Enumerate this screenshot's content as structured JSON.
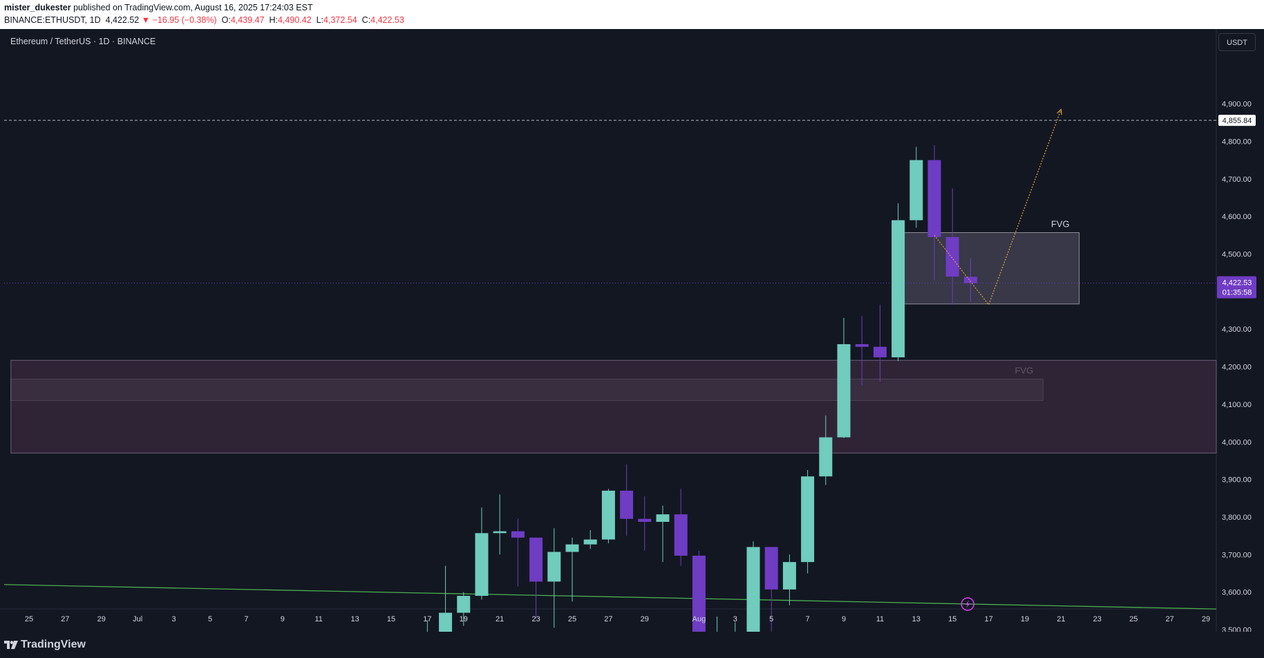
{
  "header": {
    "author": "mister_dukester",
    "published_text": "published on TradingView.com, August 16, 2025 17:24:03 EST",
    "symbol": "BINANCE:ETHUSDT, 1D",
    "price": "4,422.52",
    "change": "−16.95 (−0.38%)",
    "o_label": "O:",
    "o_value": "4,439.47",
    "h_label": "H:",
    "h_value": "4,490.42",
    "l_label": "L:",
    "l_value": "4,372.54",
    "c_label": "C:",
    "c_value": "4,422.53"
  },
  "chart": {
    "title": "Ethereum / TetherUS · 1D · BINANCE",
    "currency_button": "USDT",
    "brand": "TradingView"
  },
  "colors": {
    "background": "#131722",
    "bullish": "#70ccbd",
    "bearish": "#6f3cc4",
    "trendline": "#4caf50",
    "projection": "#e0a13a",
    "zone_fill": "#3a2a3e",
    "current_price_tag": "#6f3cc4"
  },
  "chart_data": {
    "type": "candlestick",
    "symbol": "ETHUSDT",
    "interval": "1D",
    "exchange": "BINANCE",
    "ylim": [
      3480,
      4990
    ],
    "y_ticks": [
      3500,
      3600,
      3700,
      3800,
      3900,
      4000,
      4100,
      4200,
      4300,
      4400,
      4500,
      4600,
      4700,
      4800,
      4900
    ],
    "y_tick_labels": [
      "3,500.00",
      "3,600.00",
      "3,700.00",
      "3,800.00",
      "3,900.00",
      "4,000.00",
      "4,100.00",
      "4,200.00",
      "4,300.00",
      "4,400.00",
      "4,500.00",
      "4,600.00",
      "4,700.00",
      "4,800.00",
      "4,900.00"
    ],
    "x_ticks": [
      {
        "date": "2025-06-25",
        "label": "25"
      },
      {
        "date": "2025-06-27",
        "label": "27"
      },
      {
        "date": "2025-06-29",
        "label": "29"
      },
      {
        "date": "2025-07-01",
        "label": "Jul"
      },
      {
        "date": "2025-07-03",
        "label": "3"
      },
      {
        "date": "2025-07-05",
        "label": "5"
      },
      {
        "date": "2025-07-07",
        "label": "7"
      },
      {
        "date": "2025-07-09",
        "label": "9"
      },
      {
        "date": "2025-07-11",
        "label": "11"
      },
      {
        "date": "2025-07-13",
        "label": "13"
      },
      {
        "date": "2025-07-15",
        "label": "15"
      },
      {
        "date": "2025-07-17",
        "label": "17"
      },
      {
        "date": "2025-07-19",
        "label": "19"
      },
      {
        "date": "2025-07-21",
        "label": "21"
      },
      {
        "date": "2025-07-23",
        "label": "23"
      },
      {
        "date": "2025-07-25",
        "label": "25"
      },
      {
        "date": "2025-07-27",
        "label": "27"
      },
      {
        "date": "2025-07-29",
        "label": "29"
      },
      {
        "date": "2025-08-01",
        "label": "Aug"
      },
      {
        "date": "2025-08-03",
        "label": "3"
      },
      {
        "date": "2025-08-05",
        "label": "5"
      },
      {
        "date": "2025-08-07",
        "label": "7"
      },
      {
        "date": "2025-08-09",
        "label": "9"
      },
      {
        "date": "2025-08-11",
        "label": "11"
      },
      {
        "date": "2025-08-13",
        "label": "13"
      },
      {
        "date": "2025-08-15",
        "label": "15"
      },
      {
        "date": "2025-08-17",
        "label": "17"
      },
      {
        "date": "2025-08-19",
        "label": "19"
      },
      {
        "date": "2025-08-21",
        "label": "21"
      },
      {
        "date": "2025-08-23",
        "label": "23"
      },
      {
        "date": "2025-08-25",
        "label": "25"
      },
      {
        "date": "2025-08-27",
        "label": "27"
      },
      {
        "date": "2025-08-29",
        "label": "29"
      }
    ],
    "candles": [
      {
        "date": "2025-07-17",
        "o": 3475,
        "h": 3525,
        "l": 3480,
        "c": 3480
      },
      {
        "date": "2025-07-18",
        "o": 3482,
        "h": 3670,
        "l": 3475,
        "c": 3545
      },
      {
        "date": "2025-07-19",
        "o": 3545,
        "h": 3600,
        "l": 3510,
        "c": 3590
      },
      {
        "date": "2025-07-20",
        "o": 3590,
        "h": 3825,
        "l": 3580,
        "c": 3757
      },
      {
        "date": "2025-07-21",
        "o": 3757,
        "h": 3860,
        "l": 3700,
        "c": 3762
      },
      {
        "date": "2025-07-22",
        "o": 3762,
        "h": 3795,
        "l": 3615,
        "c": 3745
      },
      {
        "date": "2025-07-23",
        "o": 3745,
        "h": 3745,
        "l": 3530,
        "c": 3628
      },
      {
        "date": "2025-07-24",
        "o": 3628,
        "h": 3770,
        "l": 3505,
        "c": 3707
      },
      {
        "date": "2025-07-25",
        "o": 3707,
        "h": 3745,
        "l": 3575,
        "c": 3727
      },
      {
        "date": "2025-07-26",
        "o": 3727,
        "h": 3765,
        "l": 3715,
        "c": 3740
      },
      {
        "date": "2025-07-27",
        "o": 3740,
        "h": 3875,
        "l": 3730,
        "c": 3870
      },
      {
        "date": "2025-07-28",
        "o": 3870,
        "h": 3940,
        "l": 3750,
        "c": 3795
      },
      {
        "date": "2025-07-29",
        "o": 3795,
        "h": 3855,
        "l": 3710,
        "c": 3787
      },
      {
        "date": "2025-07-30",
        "o": 3787,
        "h": 3830,
        "l": 3680,
        "c": 3807
      },
      {
        "date": "2025-07-31",
        "o": 3807,
        "h": 3875,
        "l": 3670,
        "c": 3697
      },
      {
        "date": "2025-08-01",
        "o": 3697,
        "h": 3710,
        "l": 3480,
        "c": 3480
      },
      {
        "date": "2025-08-02",
        "o": 3480,
        "h": 3535,
        "l": 3475,
        "c": 3482
      },
      {
        "date": "2025-08-03",
        "o": 3482,
        "h": 3520,
        "l": 3480,
        "c": 3493
      },
      {
        "date": "2025-08-04",
        "o": 3493,
        "h": 3735,
        "l": 3487,
        "c": 3720
      },
      {
        "date": "2025-08-05",
        "o": 3720,
        "h": 3720,
        "l": 3495,
        "c": 3607
      },
      {
        "date": "2025-08-06",
        "o": 3607,
        "h": 3700,
        "l": 3565,
        "c": 3680
      },
      {
        "date": "2025-08-07",
        "o": 3680,
        "h": 3925,
        "l": 3650,
        "c": 3908
      },
      {
        "date": "2025-08-08",
        "o": 3908,
        "h": 4070,
        "l": 3885,
        "c": 4012
      },
      {
        "date": "2025-08-09",
        "o": 4012,
        "h": 4330,
        "l": 4010,
        "c": 4260
      },
      {
        "date": "2025-08-10",
        "o": 4260,
        "h": 4335,
        "l": 4150,
        "c": 4253
      },
      {
        "date": "2025-08-11",
        "o": 4253,
        "h": 4365,
        "l": 4160,
        "c": 4225
      },
      {
        "date": "2025-08-12",
        "o": 4225,
        "h": 4635,
        "l": 4215,
        "c": 4590
      },
      {
        "date": "2025-08-13",
        "o": 4590,
        "h": 4785,
        "l": 4570,
        "c": 4750
      },
      {
        "date": "2025-08-14",
        "o": 4750,
        "h": 4790,
        "l": 4430,
        "c": 4545
      },
      {
        "date": "2025-08-15",
        "o": 4545,
        "h": 4675,
        "l": 4365,
        "c": 4440
      },
      {
        "date": "2025-08-16",
        "o": 4439.47,
        "h": 4490.42,
        "l": 4372.54,
        "c": 4422.53
      }
    ],
    "current_price": {
      "value": 4422.53,
      "label": "4,422.53",
      "countdown": "01:35:58"
    },
    "horizontal_line": {
      "value": 4855.84,
      "label": "4,855.84",
      "style": "dashed"
    },
    "zones": [
      {
        "label": "FVG",
        "from_date": "2025-08-12",
        "to_date": "2025-08-22",
        "top": 4557,
        "bottom": 4367
      },
      {
        "label": "FVG",
        "from_date": "2025-06-24",
        "to_date": "2025-08-20",
        "top": 4167,
        "bottom": 4110
      },
      {
        "label": "",
        "from_date": "2025-06-24",
        "to_date": "2025-08-31",
        "top": 4217,
        "bottom": 3970
      }
    ],
    "trendline": {
      "from": {
        "date": "2025-06-24",
        "value": 3620
      },
      "to": {
        "date": "2025-08-31",
        "value": 3555
      }
    },
    "projection_path": [
      {
        "date": "2025-08-14",
        "value": 4550
      },
      {
        "date": "2025-08-17",
        "value": 4365
      },
      {
        "date": "2025-08-21",
        "value": 4885
      }
    ],
    "grid": false,
    "legend": "none"
  }
}
